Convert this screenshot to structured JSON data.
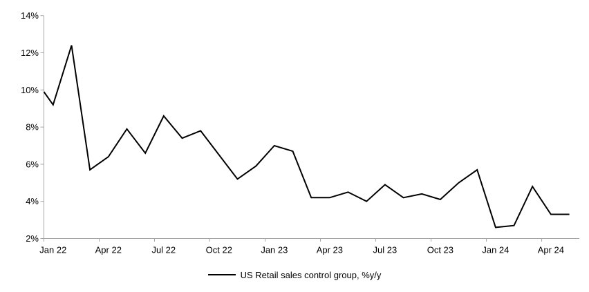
{
  "figure": {
    "background_color": "#ffffff",
    "axis_color": "#a6a6a6",
    "text_color": "#000000"
  },
  "legend": {
    "label": "US Retail sales control group, %y/y",
    "line_color": "#000000"
  },
  "chart_data": {
    "type": "line",
    "title": "",
    "xlabel": "",
    "ylabel": "",
    "grid": false,
    "legend_position": "bottom-center",
    "ylim": [
      2,
      14
    ],
    "ytick_step": 2,
    "ytick_labels": [
      "2%",
      "4%",
      "6%",
      "8%",
      "10%",
      "12%",
      "14%"
    ],
    "xtick_every_months": 3,
    "xtick_labels": [
      "Jan 22",
      "Apr 22",
      "Jul 22",
      "Oct 22",
      "Jan 23",
      "Apr 23",
      "Jul 23",
      "Oct 23",
      "Jan 24",
      "Apr 24"
    ],
    "x": [
      "Jan 22",
      "Feb 22",
      "Mar 22",
      "Apr 22",
      "May 22",
      "Jun 22",
      "Jul 22",
      "Aug 22",
      "Sep 22",
      "Oct 22",
      "Nov 22",
      "Dec 22",
      "Jan 23",
      "Feb 23",
      "Mar 23",
      "Apr 23",
      "May 23",
      "Jun 23",
      "Jul 23",
      "Aug 23",
      "Sep 23",
      "Oct 23",
      "Nov 23",
      "Dec 23",
      "Jan 24",
      "Feb 24",
      "Mar 24",
      "Apr 24",
      "May 24"
    ],
    "series": [
      {
        "name": "US Retail sales control group, %y/y",
        "color": "#000000",
        "line_width": 2,
        "values": [
          9.2,
          12.4,
          5.7,
          6.4,
          7.9,
          6.6,
          8.6,
          7.4,
          7.8,
          6.5,
          5.2,
          5.9,
          7.0,
          6.7,
          4.2,
          4.2,
          4.5,
          4.0,
          4.9,
          4.2,
          4.4,
          4.1,
          5.0,
          5.7,
          2.6,
          2.7,
          4.8,
          3.3,
          3.3
        ]
      }
    ],
    "left_edge_entry_value": 9.9
  }
}
